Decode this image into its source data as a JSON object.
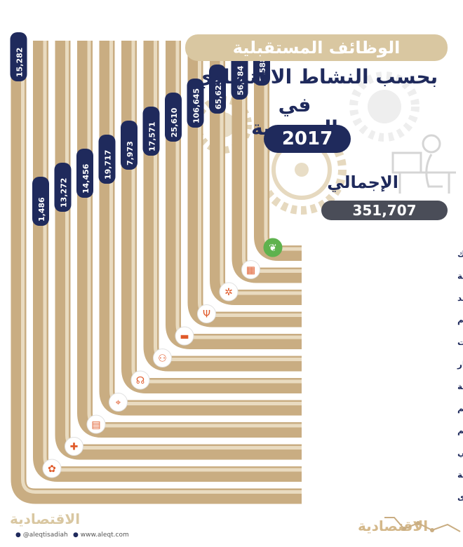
{
  "title": {
    "line1": "الوظائف المستقبلية",
    "line2": "بحسب النشاط الاقتصادي",
    "line3": "في السعودية",
    "year": "2017"
  },
  "total": {
    "label": "الإجمالي",
    "value": "351,707"
  },
  "footer": {
    "logo_left": "الاقتصادية",
    "twitter": "@aleqtisadiah",
    "website": "www.aleqt.com",
    "logo_right": "الاقتصادية"
  },
  "colors": {
    "navy": "#1f2a5c",
    "beige": "#d9c7a1",
    "bar": "#c9ad82",
    "green": "#5fb24e",
    "gear": "#e6d9bf"
  },
  "chart_data": {
    "type": "bar",
    "title": "",
    "xlabel": "",
    "ylabel": "",
    "categories": [
      "الزراعة والحراجة وصيد الأسماك",
      "قطاع الصناعة",
      "التشييد",
      "التجارة والإقامة والطعام",
      "النقل والمعلومات والاتصالات",
      "المال والتأمين والعقار",
      "الأنشطة المهنية والعلمية والتقنية",
      "الخدمات الإدارية وخدمات الدعم",
      "التعليم",
      "صحة الإنسان والعمل الاجتماعي",
      "الفنون والترفيه والتسلية",
      "الخدمات الأخرى"
    ],
    "values": [
      7588,
      56484,
      65623,
      106645,
      25610,
      17571,
      7973,
      19717,
      14456,
      13272,
      1486,
      15282
    ],
    "value_labels": [
      "7,588",
      "56,484",
      "65,623",
      "106,645",
      "25,610",
      "17,571",
      "7,973",
      "19,717",
      "14,456",
      "13,272",
      "1,486",
      "15,282"
    ],
    "icons": [
      "plant-icon",
      "factory-icon",
      "wrench-icon",
      "cutlery-icon",
      "truck-icon",
      "handshake-icon",
      "headset-icon",
      "map-pin-icon",
      "book-icon",
      "doctor-icon",
      "palette-icon",
      ""
    ]
  }
}
